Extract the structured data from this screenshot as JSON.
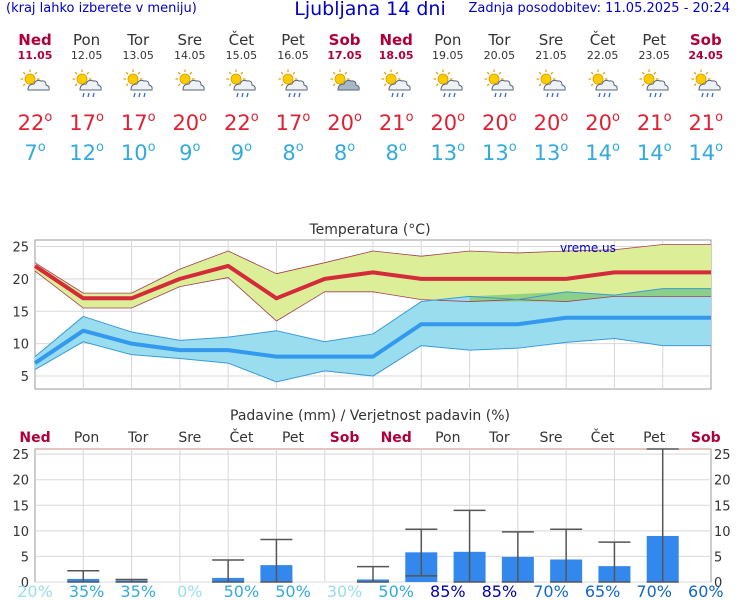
{
  "header": {
    "left": "(kraj lahko izberete v meniju)",
    "title": "Ljubljana 14 dni",
    "updated": "Zadnja posodobitev: 11.05.2025 - 20:24"
  },
  "days": [
    {
      "name": "Ned",
      "date": "11.05",
      "icon": "sun-cloud-icon",
      "max": "22",
      "min": "7",
      "weekend": true
    },
    {
      "name": "Pon",
      "date": "12.05",
      "icon": "sun-cloud-rain-icon",
      "max": "17",
      "min": "12",
      "weekend": false
    },
    {
      "name": "Tor",
      "date": "13.05",
      "icon": "sun-cloud-rain-icon",
      "max": "17",
      "min": "10",
      "weekend": false
    },
    {
      "name": "Sre",
      "date": "14.05",
      "icon": "sun-cloud-icon",
      "max": "20",
      "min": "9",
      "weekend": false
    },
    {
      "name": "Čet",
      "date": "15.05",
      "icon": "sun-cloud-rain-icon",
      "max": "22",
      "min": "9",
      "weekend": false
    },
    {
      "name": "Pet",
      "date": "16.05",
      "icon": "sun-cloud-rain-icon",
      "max": "17",
      "min": "8",
      "weekend": false
    },
    {
      "name": "Sob",
      "date": "17.05",
      "icon": "cloud-sun-icon",
      "max": "20",
      "min": "8",
      "weekend": true
    },
    {
      "name": "Ned",
      "date": "18.05",
      "icon": "sun-cloud-rain-icon",
      "max": "21",
      "min": "8",
      "weekend": true
    },
    {
      "name": "Pon",
      "date": "19.05",
      "icon": "sun-cloud-rain-icon",
      "max": "20",
      "min": "13",
      "weekend": false
    },
    {
      "name": "Tor",
      "date": "20.05",
      "icon": "sun-cloud-rain-icon",
      "max": "20",
      "min": "13",
      "weekend": false
    },
    {
      "name": "Sre",
      "date": "21.05",
      "icon": "sun-cloud-rain-icon",
      "max": "20",
      "min": "13",
      "weekend": false
    },
    {
      "name": "Čet",
      "date": "22.05",
      "icon": "sun-cloud-rain-icon",
      "max": "20",
      "min": "14",
      "weekend": false
    },
    {
      "name": "Pet",
      "date": "23.05",
      "icon": "sun-cloud-rain-icon",
      "max": "21",
      "min": "14",
      "weekend": false
    },
    {
      "name": "Sob",
      "date": "24.05",
      "icon": "sun-cloud-rain-icon",
      "max": "21",
      "min": "14",
      "weekend": true
    }
  ],
  "chart_data": [
    {
      "type": "line",
      "title": "Temperatura (°C)",
      "watermark": "vreme.us",
      "ylim": [
        3,
        26
      ],
      "yticks": [
        5,
        10,
        15,
        20,
        25
      ],
      "grid": true,
      "x": [
        0,
        1,
        2,
        3,
        4,
        5,
        6,
        7,
        8,
        9,
        10,
        11,
        12,
        13,
        14
      ],
      "series": [
        {
          "role": "max",
          "values": [
            22,
            17,
            17,
            20,
            22,
            17,
            20,
            21,
            20,
            20,
            20,
            20,
            21,
            21,
            21
          ],
          "color": "#d42a3a"
        },
        {
          "role": "max-upper",
          "values": [
            22.5,
            17.8,
            17.8,
            21.5,
            24.3,
            20.8,
            22.5,
            24.3,
            23.5,
            24.3,
            24,
            24.3,
            24.5,
            25.3,
            25.3
          ],
          "color": "#a04050"
        },
        {
          "role": "max-lower",
          "values": [
            21.2,
            15.5,
            15.5,
            18.8,
            20.2,
            13.5,
            18,
            18,
            16.8,
            16.5,
            16.8,
            16.5,
            17.3,
            17.3,
            17.3
          ],
          "color": "#a04050"
        },
        {
          "role": "min",
          "values": [
            7,
            12,
            10,
            9,
            9,
            8,
            8,
            8,
            13,
            13,
            13,
            14,
            14,
            14,
            14
          ],
          "color": "#3399ee"
        },
        {
          "role": "min-upper",
          "values": [
            8,
            14.2,
            11.8,
            10.5,
            11,
            12,
            10.3,
            11.5,
            16.5,
            17.3,
            16.8,
            18,
            17.5,
            18.5,
            18.5
          ],
          "color": "#3a9ad9"
        },
        {
          "role": "min-lower",
          "values": [
            6,
            10.3,
            8.3,
            7.7,
            7,
            4.1,
            5.8,
            5,
            9.7,
            9,
            9.3,
            10.2,
            10.8,
            9.7,
            9.7
          ],
          "color": "#3a9ad9"
        }
      ],
      "band_colors": {
        "max": "#ddee99",
        "min": "#99ddee",
        "overlap": "#88cc77"
      }
    },
    {
      "type": "bar",
      "title": "Padavine (mm) / Verjetnost padavin (%)",
      "ylim": [
        0,
        26
      ],
      "yticks": [
        0,
        5,
        10,
        15,
        20,
        25
      ],
      "categories": [
        "Ned",
        "Pon",
        "Tor",
        "Sre",
        "Čet",
        "Pet",
        "Sob",
        "Ned",
        "Pon",
        "Tor",
        "Sre",
        "Čet",
        "Pet",
        "Sob"
      ],
      "weekend": [
        true,
        false,
        false,
        false,
        false,
        false,
        true,
        true,
        false,
        false,
        false,
        false,
        false,
        true
      ],
      "values": [
        0,
        0.6,
        0.3,
        0,
        0.8,
        3.3,
        0,
        0.5,
        5.8,
        5.9,
        4.9,
        4.4,
        3.1,
        9
      ],
      "err_low": [
        0,
        0,
        0,
        0,
        0,
        0,
        0,
        0,
        1.2,
        0,
        0,
        0,
        0,
        0
      ],
      "err_high": [
        0,
        2.2,
        0.5,
        0,
        4.3,
        8.3,
        0,
        3,
        10.3,
        14,
        9.8,
        10.3,
        7.8,
        26
      ],
      "probability": [
        "20%",
        "35%",
        "35%",
        "0%",
        "50%",
        "50%",
        "30%",
        "50%",
        "85%",
        "85%",
        "70%",
        "65%",
        "70%",
        "60%"
      ],
      "probability_colors": [
        "#99ddee",
        "#33aadd",
        "#33aadd",
        "#99ddee",
        "#33aadd",
        "#33aadd",
        "#99ddee",
        "#33aadd",
        "#0000aa",
        "#0000aa",
        "#1166cc",
        "#1166cc",
        "#1166cc",
        "#1166cc"
      ],
      "bar_color": "#3388ee"
    }
  ]
}
